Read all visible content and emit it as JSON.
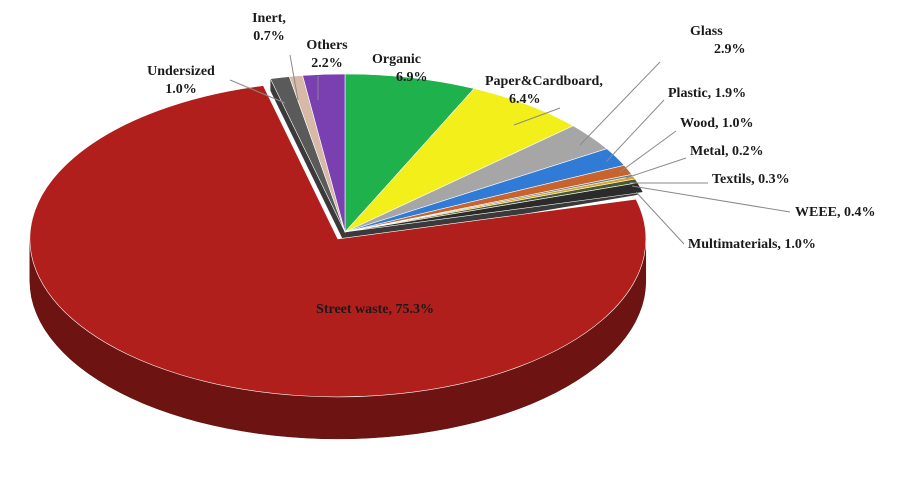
{
  "chart_data": {
    "type": "pie",
    "title": "",
    "slices": [
      {
        "label": "Organic",
        "value_text": "6.9%",
        "value": 6.9,
        "color": "#1fb14b"
      },
      {
        "label": "Paper&Cardboard,",
        "value_text": "6.4%",
        "value": 6.4,
        "color": "#f2ef1b"
      },
      {
        "label": "Glass",
        "value_text": "2.9%",
        "value": 2.9,
        "color": "#a6a6a6"
      },
      {
        "label": "Plastic, 1.9%",
        "value_text": "",
        "value": 1.9,
        "color": "#2f7bd6"
      },
      {
        "label": "Wood, 1.0%",
        "value_text": "",
        "value": 1.0,
        "color": "#c8632b"
      },
      {
        "label": "Metal, 0.2%",
        "value_text": "",
        "value": 0.2,
        "color": "#6b7b8c"
      },
      {
        "label": "Textils, 0.3%",
        "value_text": "",
        "value": 0.3,
        "color": "#d8a531"
      },
      {
        "label": "WEEE, 0.4%",
        "value_text": "",
        "value": 0.4,
        "color": "#4a5a2a"
      },
      {
        "label": "Multimaterials, 1.0%",
        "value_text": "",
        "value": 1.0,
        "color": "#2b2b2b"
      },
      {
        "label": "Street waste, 75.3%",
        "value_text": "",
        "value": 75.3,
        "color": "#b01f1c"
      },
      {
        "label": "Undersized",
        "value_text": "1.0%",
        "value": 1.0,
        "color": "#5a5a5a"
      },
      {
        "label": "Inert,",
        "value_text": "0.7%",
        "value": 0.7,
        "color": "#d8b9a8"
      },
      {
        "label": "Others",
        "value_text": "2.2%",
        "value": 2.2,
        "color": "#7a3fb0"
      }
    ]
  }
}
